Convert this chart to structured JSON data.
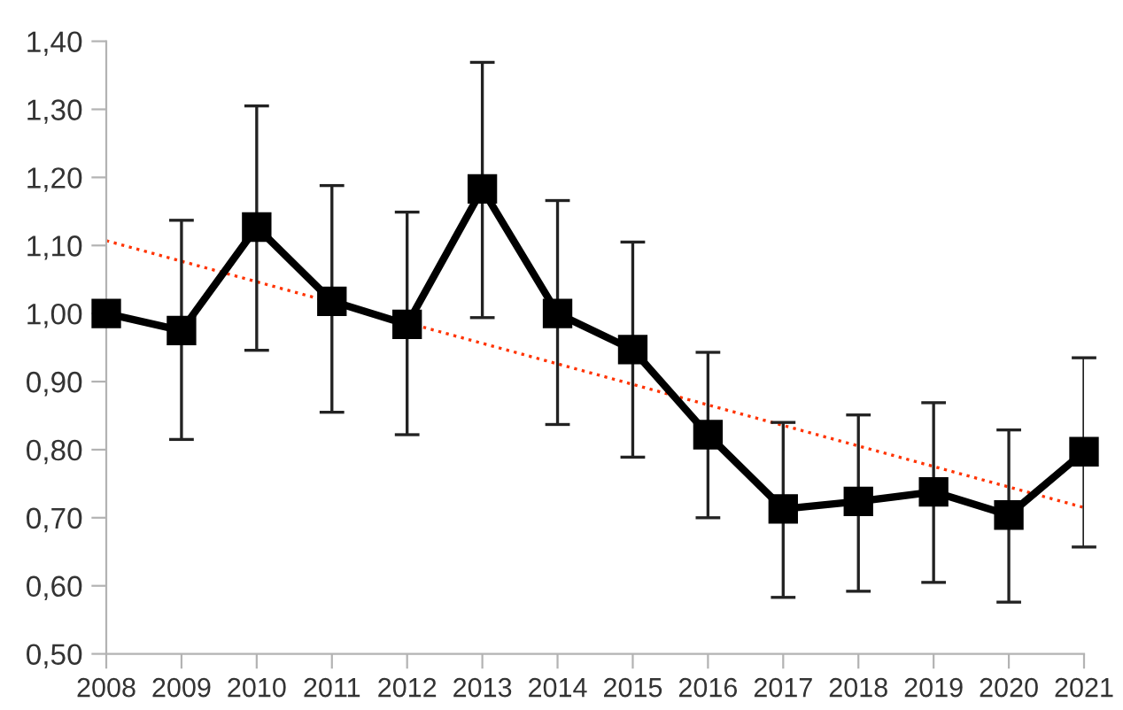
{
  "chart_data": {
    "type": "line",
    "categories": [
      "2008",
      "2009",
      "2010",
      "2011",
      "2012",
      "2013",
      "2014",
      "2015",
      "2016",
      "2017",
      "2018",
      "2019",
      "2020",
      "2021"
    ],
    "series": [
      {
        "color": "#000000",
        "marker": "square",
        "line_style": "solid",
        "values": [
          1.0,
          0.975,
          1.127,
          1.018,
          0.984,
          1.183,
          1.0,
          0.947,
          0.822,
          0.713,
          0.724,
          0.738,
          0.704,
          0.797
        ],
        "errors": [
          null,
          [
            0.815,
            1.137
          ],
          [
            0.946,
            1.305
          ],
          [
            0.855,
            1.188
          ],
          [
            0.822,
            1.149
          ],
          [
            0.994,
            1.369
          ],
          [
            0.837,
            1.166
          ],
          [
            0.789,
            1.105
          ],
          [
            0.7,
            0.943
          ],
          [
            0.583,
            0.84
          ],
          [
            0.592,
            0.851
          ],
          [
            0.605,
            0.869
          ],
          [
            0.576,
            0.829
          ],
          [
            0.657,
            0.935
          ]
        ]
      },
      {
        "color": "#ff3300",
        "marker": "none",
        "line_style": "dotted",
        "values": [
          1.107,
          null,
          null,
          null,
          null,
          null,
          null,
          null,
          null,
          null,
          null,
          null,
          null,
          0.715
        ]
      }
    ],
    "ylim": [
      0.5,
      1.4
    ],
    "yticks": [
      {
        "value": 0.5,
        "label": "0,50"
      },
      {
        "value": 0.6,
        "label": "0,60"
      },
      {
        "value": 0.7,
        "label": "0,70"
      },
      {
        "value": 0.8,
        "label": "0,80"
      },
      {
        "value": 0.9,
        "label": "0,90"
      },
      {
        "value": 1.0,
        "label": "1,00"
      },
      {
        "value": 1.1,
        "label": "1,10"
      },
      {
        "value": 1.2,
        "label": "1,20"
      },
      {
        "value": 1.3,
        "label": "1,30"
      },
      {
        "value": 1.4,
        "label": "1,40"
      }
    ],
    "grid": false
  }
}
